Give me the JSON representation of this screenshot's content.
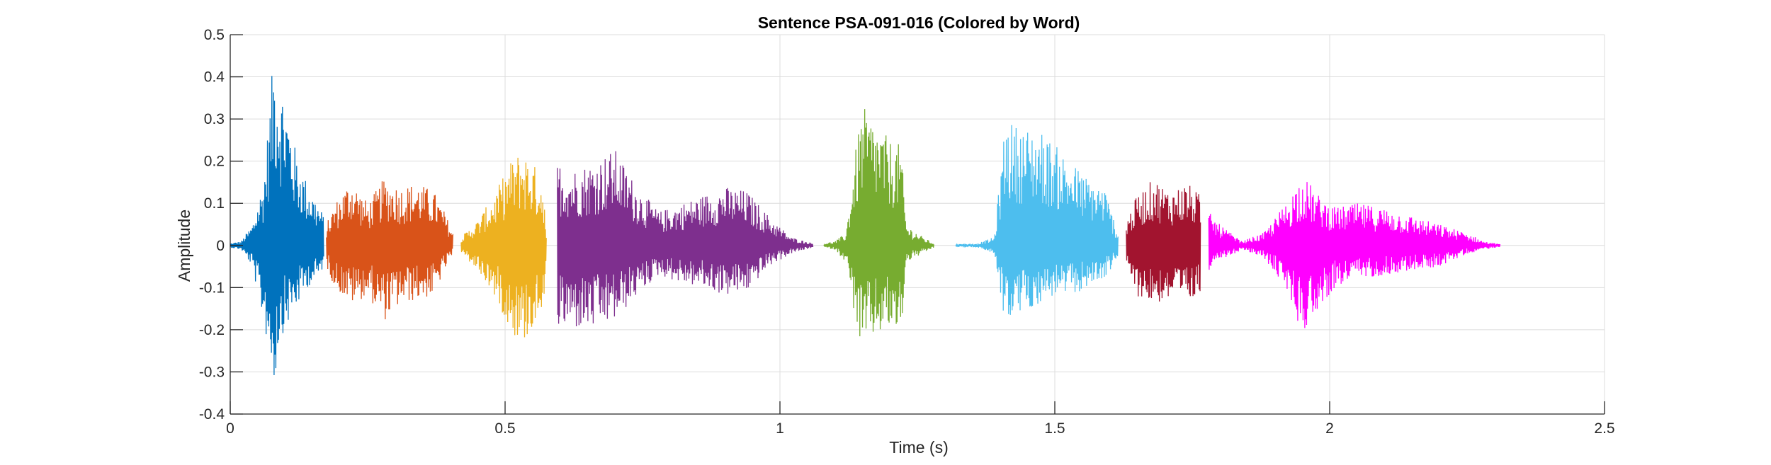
{
  "chart_data": {
    "type": "line",
    "title": "Sentence PSA-091-016 (Colored by Word)",
    "xlabel": "Time (s)",
    "ylabel": "Amplitude",
    "xlim": [
      0,
      2.5
    ],
    "ylim": [
      -0.4,
      0.5
    ],
    "grid": true,
    "x_ticks": [
      0,
      0.5,
      1,
      1.5,
      2,
      2.5
    ],
    "x_tick_labels": [
      "0",
      "0.5",
      "1",
      "1.5",
      "2",
      "2.5"
    ],
    "y_ticks": [
      -0.4,
      -0.3,
      -0.2,
      -0.1,
      0,
      0.1,
      0.2,
      0.3,
      0.4,
      0.5
    ],
    "y_tick_labels": [
      "-0.4",
      "-0.3",
      "-0.2",
      "-0.1",
      "0",
      "0.1",
      "0.2",
      "0.3",
      "0.4",
      "0.5"
    ],
    "segments": [
      {
        "start": 0.0,
        "end": 0.17,
        "color": "#0072BD",
        "envelope": [
          [
            0.0,
            0.005,
            0.005
          ],
          [
            0.02,
            0.01,
            0.01
          ],
          [
            0.04,
            0.05,
            0.05
          ],
          [
            0.06,
            0.15,
            0.18
          ],
          [
            0.07,
            0.3,
            0.25
          ],
          [
            0.08,
            0.48,
            0.34
          ],
          [
            0.09,
            0.4,
            0.22
          ],
          [
            0.1,
            0.36,
            0.2
          ],
          [
            0.12,
            0.22,
            0.15
          ],
          [
            0.14,
            0.15,
            0.1
          ],
          [
            0.16,
            0.1,
            0.08
          ],
          [
            0.17,
            0.07,
            0.05
          ]
        ]
      },
      {
        "start": 0.175,
        "end": 0.405,
        "color": "#D95319",
        "envelope": [
          [
            0.175,
            0.05,
            0.05
          ],
          [
            0.19,
            0.1,
            0.1
          ],
          [
            0.22,
            0.16,
            0.14
          ],
          [
            0.25,
            0.1,
            0.12
          ],
          [
            0.28,
            0.16,
            0.18
          ],
          [
            0.31,
            0.14,
            0.14
          ],
          [
            0.34,
            0.15,
            0.13
          ],
          [
            0.37,
            0.13,
            0.12
          ],
          [
            0.39,
            0.08,
            0.06
          ],
          [
            0.405,
            0.03,
            0.02
          ]
        ]
      },
      {
        "start": 0.42,
        "end": 0.575,
        "color": "#EDB120",
        "envelope": [
          [
            0.42,
            0.02,
            0.02
          ],
          [
            0.45,
            0.06,
            0.06
          ],
          [
            0.48,
            0.12,
            0.12
          ],
          [
            0.51,
            0.2,
            0.2
          ],
          [
            0.53,
            0.23,
            0.24
          ],
          [
            0.55,
            0.2,
            0.2
          ],
          [
            0.57,
            0.15,
            0.14
          ],
          [
            0.575,
            0.02,
            0.02
          ]
        ]
      },
      {
        "start": 0.595,
        "end": 1.06,
        "color": "#7E2F8E",
        "envelope": [
          [
            0.595,
            0.2,
            0.2
          ],
          [
            0.62,
            0.18,
            0.2
          ],
          [
            0.66,
            0.2,
            0.2
          ],
          [
            0.7,
            0.23,
            0.18
          ],
          [
            0.74,
            0.14,
            0.12
          ],
          [
            0.78,
            0.08,
            0.07
          ],
          [
            0.82,
            0.1,
            0.09
          ],
          [
            0.86,
            0.12,
            0.1
          ],
          [
            0.9,
            0.14,
            0.12
          ],
          [
            0.94,
            0.13,
            0.11
          ],
          [
            0.98,
            0.07,
            0.05
          ],
          [
            1.02,
            0.02,
            0.02
          ],
          [
            1.06,
            0.005,
            0.005
          ]
        ]
      },
      {
        "start": 1.08,
        "end": 1.28,
        "color": "#77AC30",
        "envelope": [
          [
            1.08,
            0.005,
            0.005
          ],
          [
            1.1,
            0.01,
            0.01
          ],
          [
            1.12,
            0.03,
            0.04
          ],
          [
            1.14,
            0.25,
            0.2
          ],
          [
            1.15,
            0.33,
            0.26
          ],
          [
            1.17,
            0.3,
            0.22
          ],
          [
            1.2,
            0.25,
            0.2
          ],
          [
            1.22,
            0.24,
            0.22
          ],
          [
            1.23,
            0.05,
            0.04
          ],
          [
            1.26,
            0.02,
            0.02
          ],
          [
            1.28,
            0.005,
            0.005
          ]
        ]
      },
      {
        "start": 1.32,
        "end": 1.615,
        "color": "#4DBEEE",
        "envelope": [
          [
            1.32,
            0.003,
            0.003
          ],
          [
            1.36,
            0.005,
            0.005
          ],
          [
            1.39,
            0.02,
            0.02
          ],
          [
            1.41,
            0.3,
            0.19
          ],
          [
            1.44,
            0.28,
            0.16
          ],
          [
            1.47,
            0.28,
            0.14
          ],
          [
            1.5,
            0.24,
            0.12
          ],
          [
            1.53,
            0.2,
            0.12
          ],
          [
            1.56,
            0.16,
            0.1
          ],
          [
            1.59,
            0.14,
            0.08
          ],
          [
            1.615,
            0.03,
            0.03
          ]
        ]
      },
      {
        "start": 1.63,
        "end": 1.765,
        "color": "#A2142F",
        "envelope": [
          [
            1.63,
            0.06,
            0.05
          ],
          [
            1.65,
            0.12,
            0.12
          ],
          [
            1.68,
            0.16,
            0.14
          ],
          [
            1.71,
            0.13,
            0.13
          ],
          [
            1.74,
            0.15,
            0.14
          ],
          [
            1.765,
            0.12,
            0.12
          ]
        ]
      },
      {
        "start": 1.78,
        "end": 2.31,
        "color": "#FF00FF",
        "envelope": [
          [
            1.78,
            0.08,
            0.07
          ],
          [
            1.8,
            0.05,
            0.04
          ],
          [
            1.84,
            0.01,
            0.01
          ],
          [
            1.88,
            0.03,
            0.03
          ],
          [
            1.92,
            0.1,
            0.1
          ],
          [
            1.95,
            0.17,
            0.21
          ],
          [
            1.98,
            0.12,
            0.15
          ],
          [
            2.01,
            0.09,
            0.1
          ],
          [
            2.05,
            0.1,
            0.08
          ],
          [
            2.1,
            0.09,
            0.07
          ],
          [
            2.15,
            0.07,
            0.06
          ],
          [
            2.2,
            0.05,
            0.05
          ],
          [
            2.25,
            0.03,
            0.02
          ],
          [
            2.28,
            0.01,
            0.01
          ],
          [
            2.31,
            0.003,
            0.003
          ]
        ]
      }
    ]
  }
}
